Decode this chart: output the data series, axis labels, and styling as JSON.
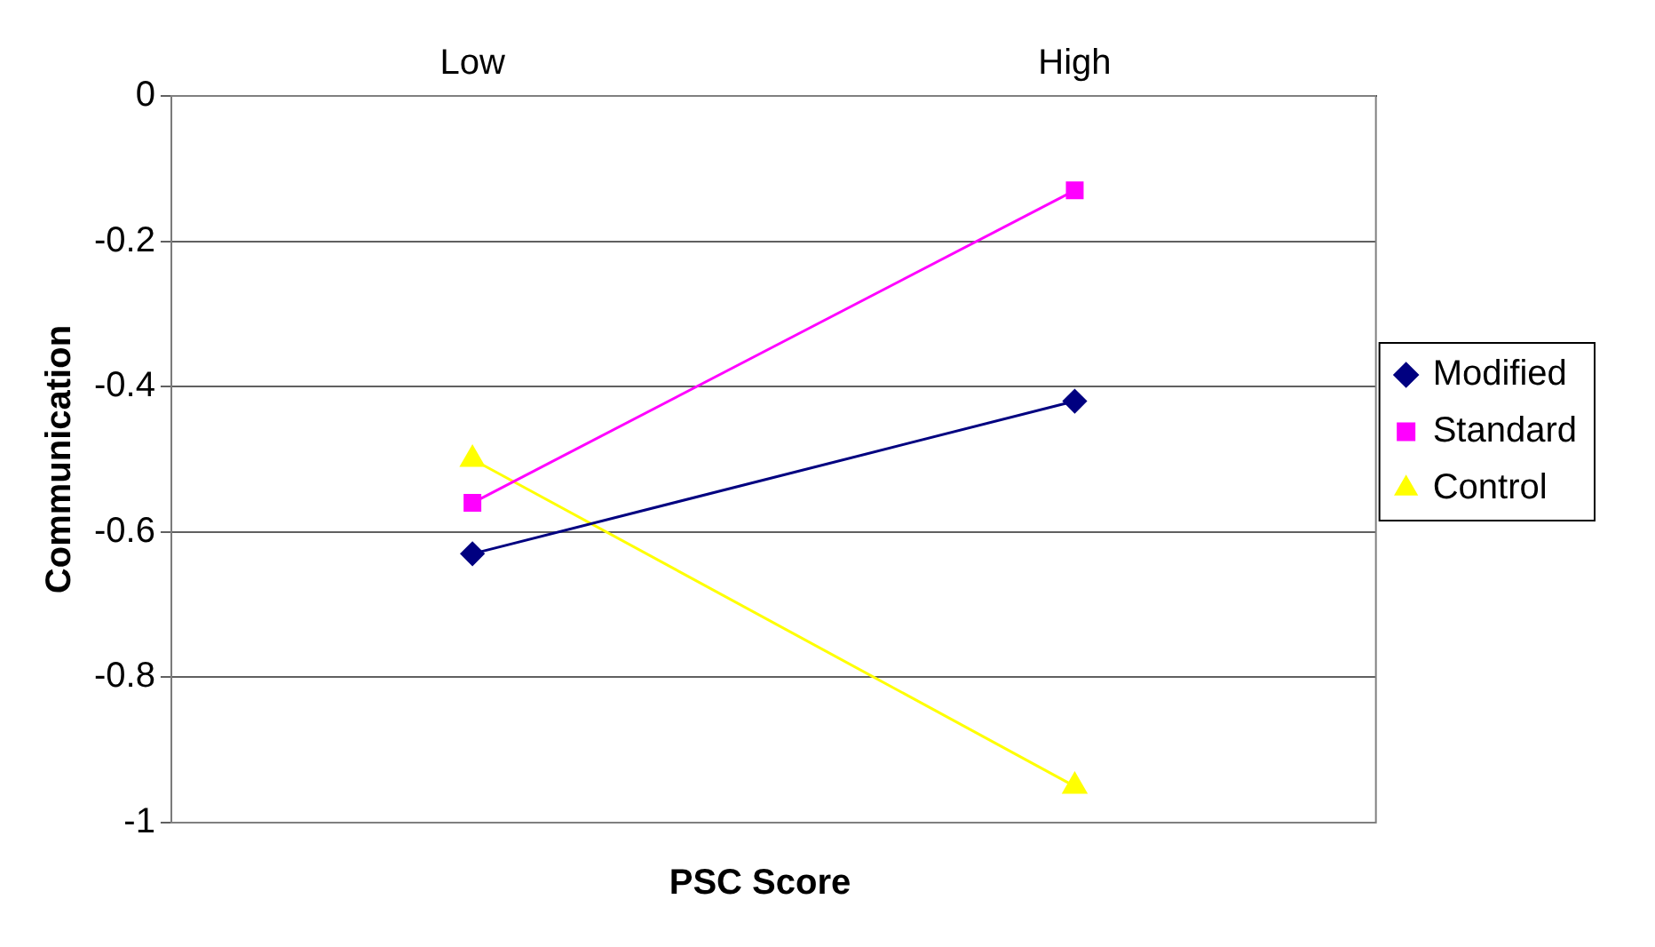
{
  "chart_data": {
    "type": "line",
    "xlabel": "PSC Score",
    "ylabel": "Communication",
    "categories": [
      "Low",
      "High"
    ],
    "series": [
      {
        "name": "Modified",
        "color": "#000080",
        "marker": "diamond",
        "values": [
          -0.63,
          -0.42
        ]
      },
      {
        "name": "Standard",
        "color": "#ff00ff",
        "marker": "square",
        "values": [
          -0.56,
          -0.13
        ]
      },
      {
        "name": "Control",
        "color": "#ffff00",
        "marker": "triangle",
        "values": [
          -0.5,
          -0.95
        ]
      }
    ],
    "ylim": [
      -1,
      0
    ],
    "yticks": [
      0,
      -0.2,
      -0.4,
      -0.6,
      -0.8,
      -1
    ],
    "grid": "y",
    "legend": "right"
  }
}
